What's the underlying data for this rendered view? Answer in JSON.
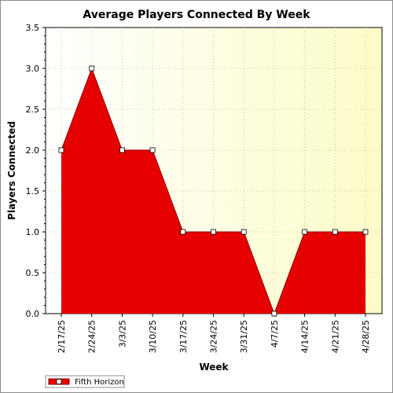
{
  "chart_data": {
    "type": "area",
    "title": "Average Players Connected By Week",
    "xlabel": "Week",
    "ylabel": "Players Connected",
    "categories": [
      "2/17/25",
      "2/24/25",
      "3/3/25",
      "3/10/25",
      "3/17/25",
      "3/24/25",
      "3/31/25",
      "4/7/25",
      "4/14/25",
      "4/21/25",
      "4/28/25"
    ],
    "series": [
      {
        "name": "Fifth Horizon",
        "values": [
          2.0,
          3.0,
          2.0,
          2.0,
          1.0,
          1.0,
          1.0,
          0.0,
          1.0,
          1.0,
          1.0
        ]
      }
    ],
    "ylim": [
      0,
      3.5
    ],
    "yticks": [
      "0.0",
      "0.5",
      "1.0",
      "1.5",
      "2.0",
      "2.5",
      "3.0",
      "3.5"
    ],
    "grid": true,
    "legend_position": "bottom-left",
    "colors": {
      "series_fill": "#e60000",
      "series_line": "#8b0000",
      "plot_bg_light": "#fffff0",
      "plot_bg_yellow": "#fcfcc8",
      "grid": "#c8c8a0",
      "marker_fill": "#ffffff"
    }
  }
}
